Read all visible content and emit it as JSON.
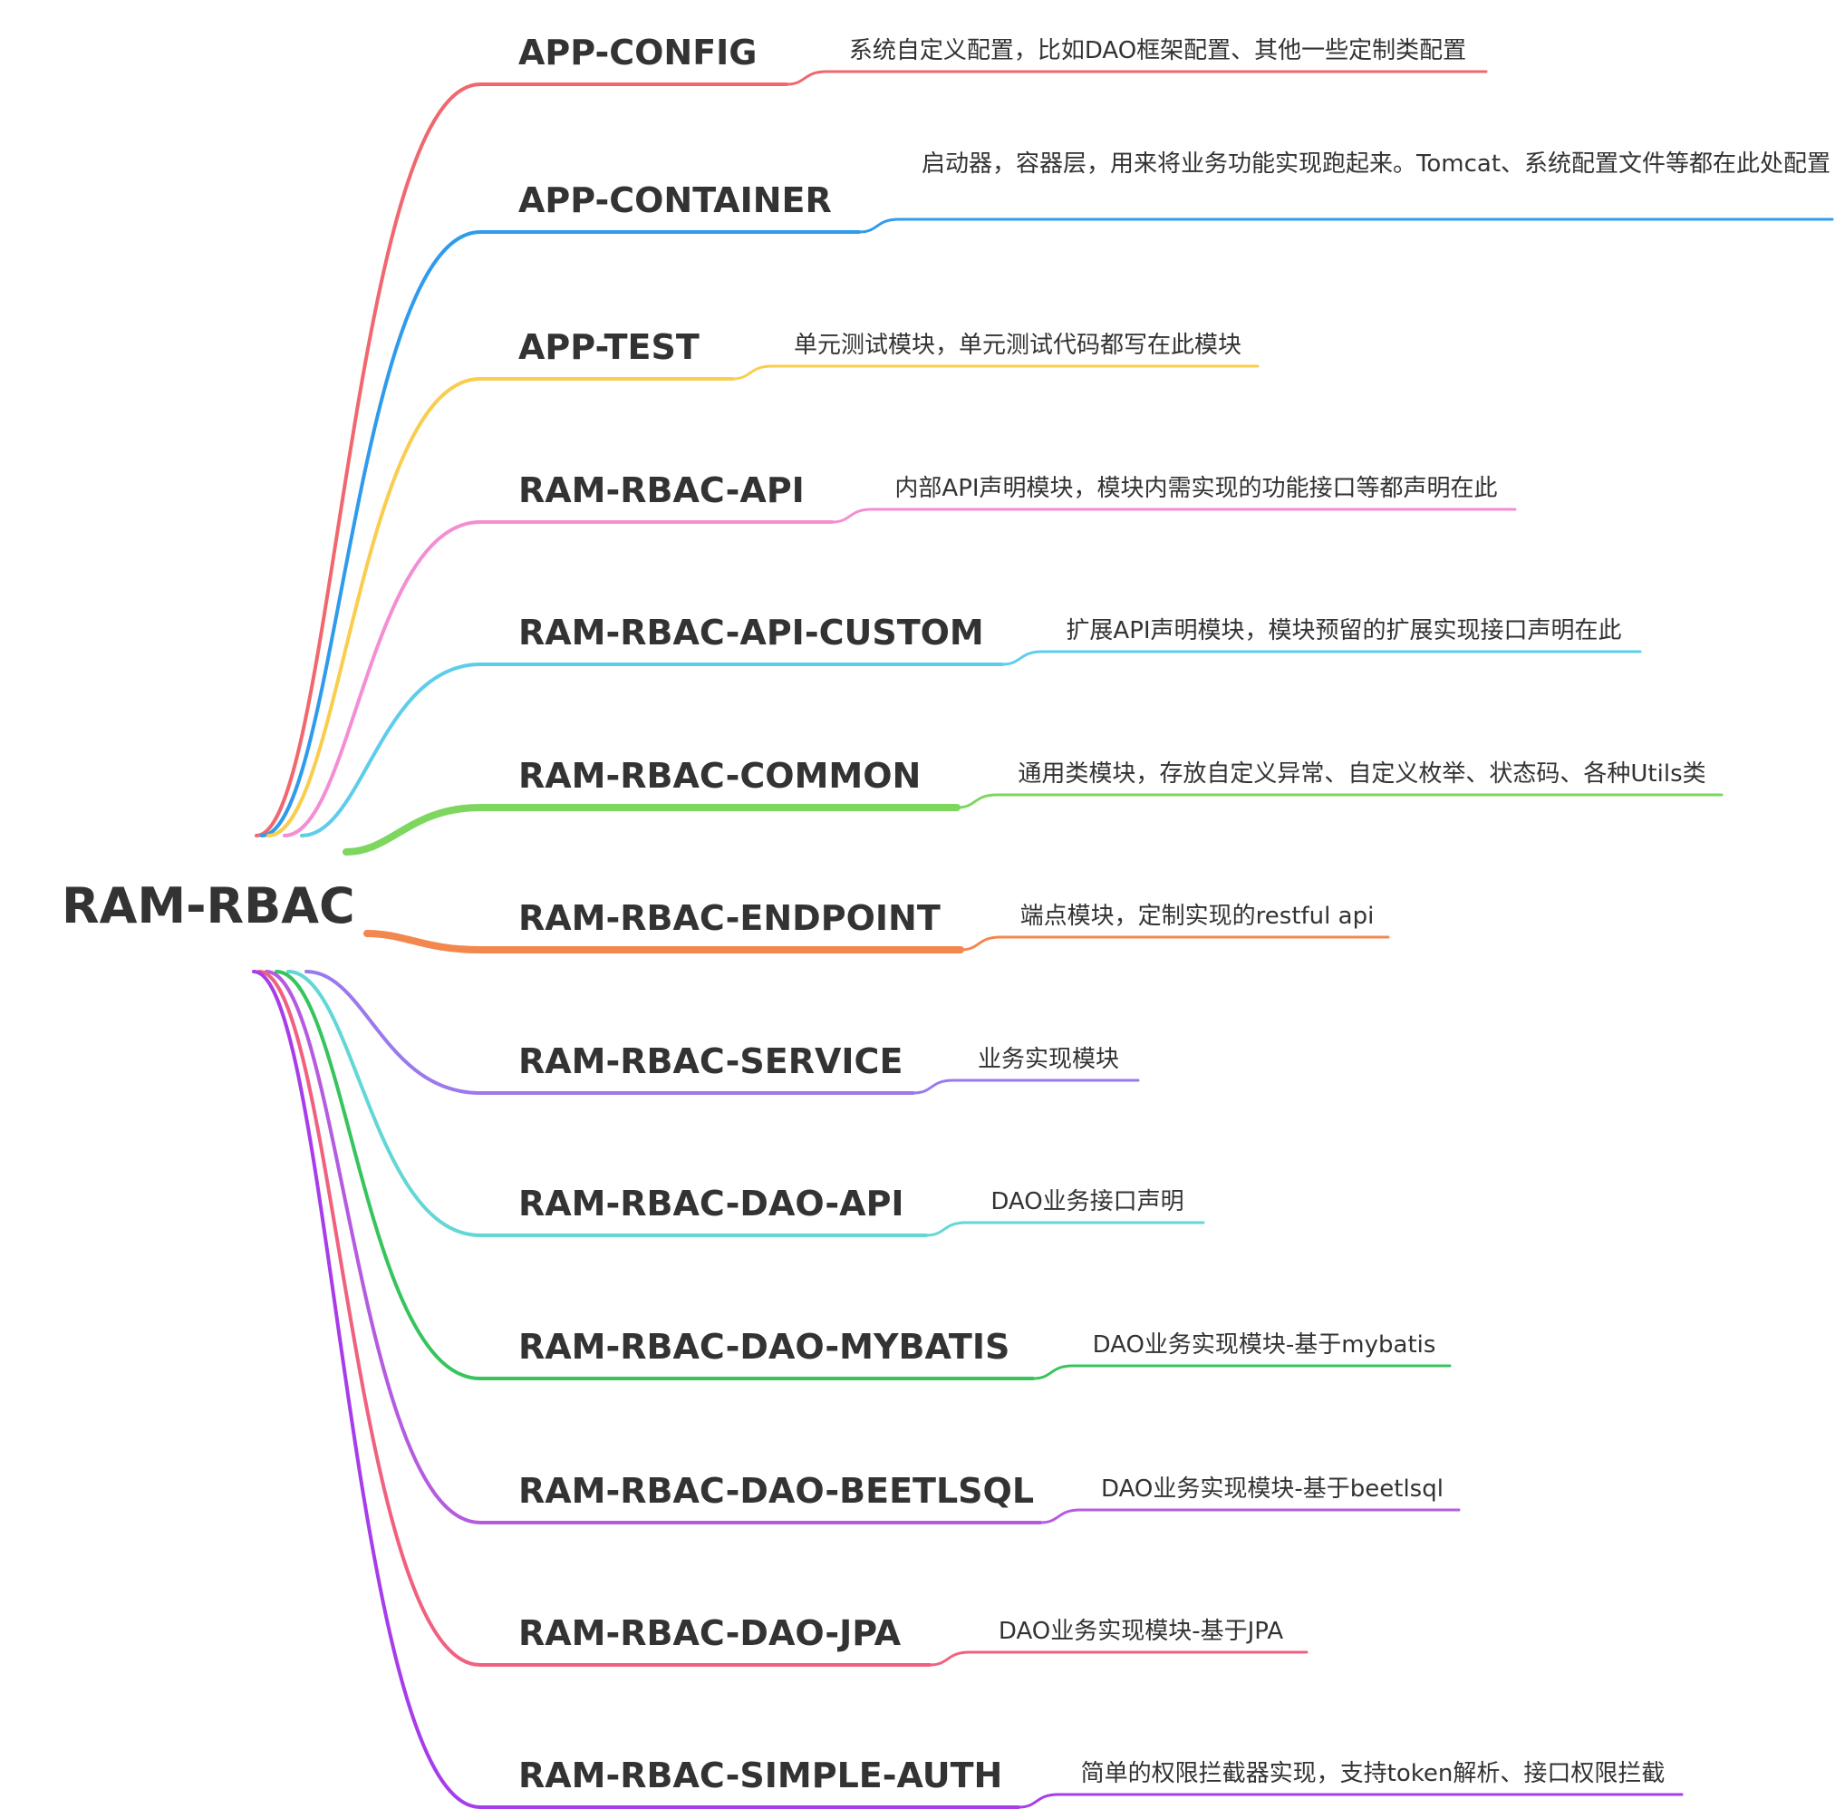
{
  "root": {
    "label": "RAM-RBAC"
  },
  "branches": [
    {
      "name": "APP-CONFIG",
      "desc": "系统自定义配置，比如DAO框架配置、其他一些定制类配置",
      "color": "#f0676e"
    },
    {
      "name": "APP-CONTAINER",
      "desc": "启动器，容器层，用来将业务功能实现跑起来。Tomcat、系统配置文件等都在此处配置",
      "color": "#2e9bec"
    },
    {
      "name": "APP-TEST",
      "desc": "单元测试模块，单元测试代码都写在此模块",
      "color": "#f9cd4d"
    },
    {
      "name": "RAM-RBAC-API",
      "desc": "内部API声明模块，模块内需实现的功能接口等都声明在此",
      "color": "#f38ed3"
    },
    {
      "name": "RAM-RBAC-API-CUSTOM",
      "desc": "扩展API声明模块，模块预留的扩展实现接口声明在此",
      "color": "#5dcdec"
    },
    {
      "name": "RAM-RBAC-COMMON",
      "desc": "通用类模块，存放自定义异常、自定义枚举、状态码、各种Utils类",
      "color": "#7dd65e"
    },
    {
      "name": "RAM-RBAC-ENDPOINT",
      "desc": "端点模块，定制实现的restful api",
      "color": "#f3884e"
    },
    {
      "name": "RAM-RBAC-SERVICE",
      "desc": "业务实现模块",
      "color": "#9b79ed"
    },
    {
      "name": "RAM-RBAC-DAO-API",
      "desc": "DAO业务接口声明",
      "color": "#63d6d6"
    },
    {
      "name": "RAM-RBAC-DAO-MYBATIS",
      "desc": "DAO业务实现模块-基于mybatis",
      "color": "#37c45c"
    },
    {
      "name": "RAM-RBAC-DAO-BEETLSQL",
      "desc": "DAO业务实现模块-基于beetlsql",
      "color": "#b45be0"
    },
    {
      "name": "RAM-RBAC-DAO-JPA",
      "desc": "DAO业务实现模块-基于JPA",
      "color": "#f0617f"
    },
    {
      "name": "RAM-RBAC-SIMPLE-AUTH",
      "desc": "简单的权限拦截器实现，支持token解析、接口权限拦截",
      "color": "#a73ceb"
    }
  ]
}
